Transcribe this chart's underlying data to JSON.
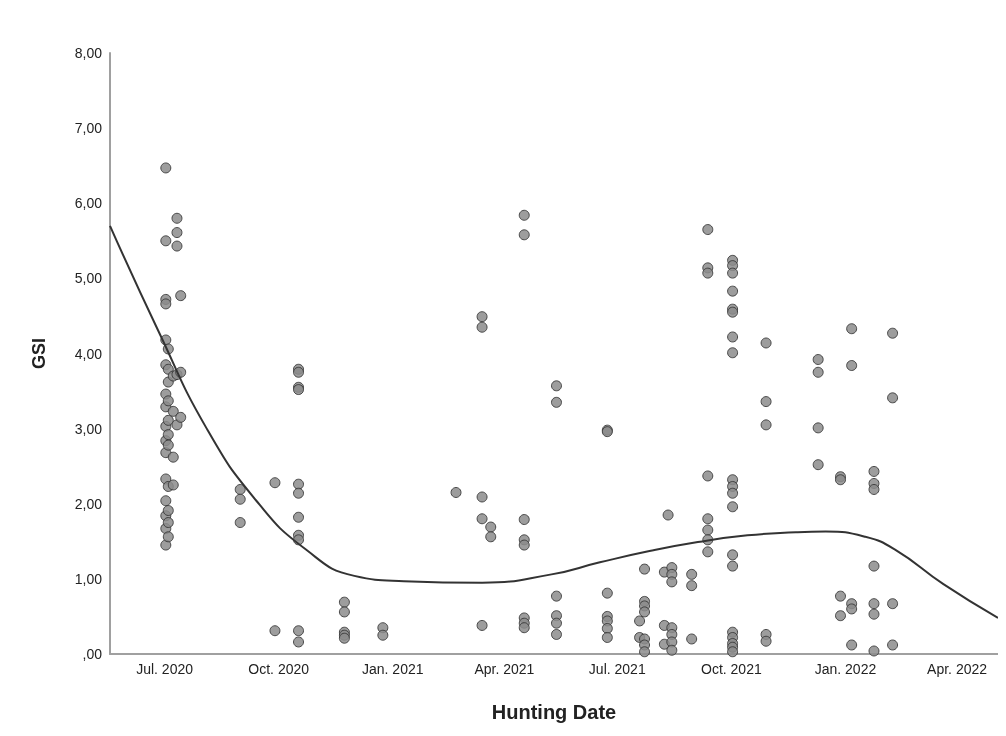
{
  "chart_data": {
    "type": "scatter",
    "xlabel": "Hunting Date",
    "ylabel": "GSI",
    "xlim": [
      "2020-05-18",
      "2022-05-04"
    ],
    "ylim": [
      0,
      8
    ],
    "xticks": [
      {
        "value": "2020-07-01",
        "label": "Jul. 2020"
      },
      {
        "value": "2020-10-01",
        "label": "Oct. 2020"
      },
      {
        "value": "2021-01-01",
        "label": "Jan. 2021"
      },
      {
        "value": "2021-04-01",
        "label": "Apr. 2021"
      },
      {
        "value": "2021-07-01",
        "label": "Jul. 2021"
      },
      {
        "value": "2021-10-01",
        "label": "Oct. 2021"
      },
      {
        "value": "2022-01-01",
        "label": "Jan. 2022"
      },
      {
        "value": "2022-04-01",
        "label": "Apr. 2022"
      }
    ],
    "yticks": [
      {
        "value": 0,
        "label": ",00"
      },
      {
        "value": 1,
        "label": "1,00"
      },
      {
        "value": 2,
        "label": "2,00"
      },
      {
        "value": 3,
        "label": "3,00"
      },
      {
        "value": 4,
        "label": "4,00"
      },
      {
        "value": 5,
        "label": "5,00"
      },
      {
        "value": 6,
        "label": "6,00"
      },
      {
        "value": 7,
        "label": "7,00"
      },
      {
        "value": 8,
        "label": "8,00"
      }
    ],
    "grid": false,
    "marker": "circle",
    "series": [
      {
        "type": "scatter",
        "color": "#8c8c8c",
        "x": [
          "2020-07-02",
          "2020-07-02",
          "2020-07-02",
          "2020-07-02",
          "2020-07-02",
          "2020-07-02",
          "2020-07-02",
          "2020-07-02",
          "2020-07-02",
          "2020-07-02",
          "2020-07-02",
          "2020-07-02",
          "2020-07-02",
          "2020-07-02",
          "2020-07-02",
          "2020-07-02",
          "2020-07-04",
          "2020-07-04",
          "2020-07-04",
          "2020-07-04",
          "2020-07-04",
          "2020-07-04",
          "2020-07-04",
          "2020-07-04",
          "2020-07-04",
          "2020-07-04",
          "2020-07-04",
          "2020-07-08",
          "2020-07-08",
          "2020-07-08",
          "2020-07-08",
          "2020-07-11",
          "2020-07-11",
          "2020-07-11",
          "2020-07-11",
          "2020-07-11",
          "2020-07-14",
          "2020-07-14",
          "2020-07-14",
          "2020-08-31",
          "2020-08-31",
          "2020-08-31",
          "2020-09-28",
          "2020-09-28",
          "2020-10-17",
          "2020-10-17",
          "2020-10-17",
          "2020-10-17",
          "2020-10-17",
          "2020-10-17",
          "2020-10-17",
          "2020-10-17",
          "2020-10-17",
          "2020-10-17",
          "2020-10-17",
          "2020-11-23",
          "2020-11-23",
          "2020-11-23",
          "2020-11-23",
          "2020-11-23",
          "2020-12-24",
          "2020-12-24",
          "2021-02-21",
          "2021-03-14",
          "2021-03-14",
          "2021-03-14",
          "2021-03-14",
          "2021-03-14",
          "2021-03-21",
          "2021-03-21",
          "2021-04-17",
          "2021-04-17",
          "2021-04-17",
          "2021-04-17",
          "2021-04-17",
          "2021-04-17",
          "2021-04-17",
          "2021-04-17",
          "2021-05-13",
          "2021-05-13",
          "2021-05-13",
          "2021-05-13",
          "2021-05-13",
          "2021-05-13",
          "2021-06-23",
          "2021-06-23",
          "2021-06-23",
          "2021-06-23",
          "2021-06-23",
          "2021-06-23",
          "2021-06-23",
          "2021-07-19",
          "2021-07-19",
          "2021-07-23",
          "2021-07-23",
          "2021-07-23",
          "2021-07-23",
          "2021-07-23",
          "2021-07-23",
          "2021-07-23",
          "2021-08-08",
          "2021-08-08",
          "2021-08-08",
          "2021-08-11",
          "2021-08-14",
          "2021-08-14",
          "2021-08-14",
          "2021-08-14",
          "2021-08-14",
          "2021-08-14",
          "2021-08-14",
          "2021-08-30",
          "2021-08-30",
          "2021-08-30",
          "2021-09-12",
          "2021-09-12",
          "2021-09-12",
          "2021-09-12",
          "2021-09-12",
          "2021-09-12",
          "2021-09-12",
          "2021-09-12",
          "2021-10-02",
          "2021-10-02",
          "2021-10-02",
          "2021-10-02",
          "2021-10-02",
          "2021-10-02",
          "2021-10-02",
          "2021-10-02",
          "2021-10-02",
          "2021-10-02",
          "2021-10-02",
          "2021-10-02",
          "2021-10-02",
          "2021-10-02",
          "2021-10-02",
          "2021-10-02",
          "2021-10-02",
          "2021-10-02",
          "2021-10-02",
          "2021-10-29",
          "2021-10-29",
          "2021-10-29",
          "2021-10-29",
          "2021-10-29",
          "2021-12-10",
          "2021-12-10",
          "2021-12-10",
          "2021-12-10",
          "2021-12-28",
          "2021-12-28",
          "2021-12-28",
          "2021-12-28",
          "2022-01-06",
          "2022-01-06",
          "2022-01-06",
          "2022-01-06",
          "2022-01-06",
          "2022-01-24",
          "2022-01-24",
          "2022-01-24",
          "2022-01-24",
          "2022-01-24",
          "2022-01-24",
          "2022-01-24",
          "2022-02-08",
          "2022-02-08",
          "2022-02-08",
          "2022-02-08"
        ],
        "values": [
          6.47,
          5.5,
          4.72,
          4.66,
          4.18,
          3.85,
          3.46,
          3.29,
          3.03,
          2.84,
          2.68,
          2.33,
          2.04,
          1.84,
          1.67,
          1.45,
          4.06,
          3.79,
          3.62,
          3.37,
          3.11,
          2.92,
          2.78,
          2.23,
          1.91,
          1.75,
          1.56,
          3.7,
          3.23,
          2.62,
          2.25,
          5.8,
          5.61,
          5.43,
          3.72,
          3.05,
          4.77,
          3.75,
          3.15,
          2.19,
          2.06,
          1.75,
          2.28,
          0.31,
          3.79,
          3.75,
          3.55,
          3.52,
          2.26,
          2.14,
          1.82,
          1.58,
          1.52,
          0.31,
          0.16,
          0.69,
          0.56,
          0.29,
          0.25,
          0.21,
          0.35,
          0.25,
          2.15,
          4.49,
          4.35,
          2.09,
          1.8,
          0.38,
          1.69,
          1.56,
          5.84,
          5.58,
          1.79,
          1.52,
          1.45,
          0.48,
          0.41,
          0.35,
          3.57,
          3.35,
          0.77,
          0.51,
          0.41,
          0.26,
          2.98,
          2.96,
          0.81,
          0.5,
          0.44,
          0.34,
          0.22,
          0.44,
          0.22,
          1.13,
          0.7,
          0.64,
          0.56,
          0.2,
          0.12,
          0.03,
          1.09,
          0.38,
          0.13,
          1.85,
          1.15,
          1.06,
          0.96,
          0.35,
          0.26,
          0.16,
          0.05,
          1.06,
          0.91,
          0.2,
          5.65,
          5.14,
          5.07,
          2.37,
          1.8,
          1.65,
          1.52,
          1.36,
          5.24,
          5.17,
          5.07,
          4.83,
          4.59,
          4.55,
          4.22,
          4.01,
          2.32,
          2.23,
          2.14,
          1.96,
          1.32,
          1.17,
          0.29,
          0.22,
          0.14,
          0.09,
          0.03,
          4.14,
          3.36,
          3.05,
          0.26,
          0.17,
          3.92,
          3.75,
          3.01,
          2.52,
          2.36,
          2.32,
          0.77,
          0.51,
          4.33,
          3.84,
          0.67,
          0.6,
          0.12,
          2.43,
          2.27,
          2.19,
          1.17,
          0.67,
          0.53,
          0.04,
          4.27,
          3.41,
          0.67,
          0.12
        ]
      },
      {
        "type": "line",
        "color": "#333333",
        "marker": "none",
        "x": [
          "2020-05-18",
          "2020-06-26",
          "2020-08-04",
          "2020-09-13",
          "2020-10-23",
          "2020-12-01",
          "2021-01-10",
          "2021-03-14",
          "2021-05-09",
          "2021-06-17",
          "2021-07-27",
          "2021-09-04",
          "2021-10-14",
          "2021-11-22",
          "2021-12-16",
          "2022-01-17",
          "2022-02-10",
          "2022-03-21",
          "2022-05-04"
        ],
        "values": [
          5.7,
          4.3,
          3.0,
          2.04,
          1.39,
          1.04,
          0.97,
          0.95,
          1.06,
          1.22,
          1.37,
          1.49,
          1.58,
          1.62,
          1.63,
          1.56,
          1.39,
          0.93,
          0.48
        ]
      }
    ]
  }
}
